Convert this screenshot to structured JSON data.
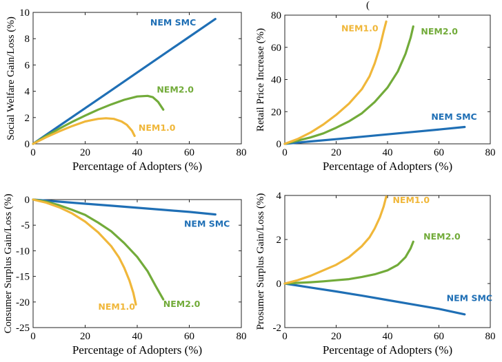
{
  "colors": {
    "nem_smc": "#1f6fb5",
    "nem2": "#72ab3a",
    "nem1": "#f0b73a"
  },
  "chart_data": [
    {
      "id": "social-welfare",
      "type": "line",
      "ylabel": "Social Welfare Gain/Loss (%)",
      "xlabel": "Percentage of Adopters (%)",
      "xlim": [
        0,
        80
      ],
      "ylim": [
        0,
        10
      ],
      "xticks": [
        "0",
        "20",
        "40",
        "60",
        "80"
      ],
      "yticks": [
        "0",
        "2",
        "4",
        "6",
        "8",
        "10"
      ],
      "series": [
        {
          "name": "NEM SMC",
          "color": "#1f6fb5",
          "label_at": [
            45,
            9.0
          ],
          "points": [
            [
              0,
              0
            ],
            [
              10,
              1.36
            ],
            [
              20,
              2.71
            ],
            [
              30,
              4.07
            ],
            [
              40,
              5.43
            ],
            [
              50,
              6.79
            ],
            [
              60,
              8.14
            ],
            [
              70,
              9.5
            ]
          ]
        },
        {
          "name": "NEM2.0",
          "color": "#72ab3a",
          "label_at": [
            47.5,
            3.9
          ],
          "points": [
            [
              0,
              0
            ],
            [
              5,
              0.6
            ],
            [
              10,
              1.15
            ],
            [
              15,
              1.67
            ],
            [
              20,
              2.15
            ],
            [
              25,
              2.6
            ],
            [
              30,
              3.0
            ],
            [
              35,
              3.35
            ],
            [
              40,
              3.6
            ],
            [
              44,
              3.65
            ],
            [
              46,
              3.55
            ],
            [
              48,
              3.2
            ],
            [
              50,
              2.6
            ]
          ]
        },
        {
          "name": "NEM1.0",
          "color": "#f0b73a",
          "label_at": [
            40.5,
            1.0
          ],
          "points": [
            [
              0,
              0
            ],
            [
              5,
              0.5
            ],
            [
              10,
              0.95
            ],
            [
              15,
              1.35
            ],
            [
              20,
              1.7
            ],
            [
              25,
              1.9
            ],
            [
              28,
              1.95
            ],
            [
              31,
              1.9
            ],
            [
              34,
              1.7
            ],
            [
              36,
              1.45
            ],
            [
              38,
              1.0
            ],
            [
              39,
              0.6
            ]
          ]
        }
      ]
    },
    {
      "id": "retail-price",
      "type": "line",
      "ylabel": "Retail Price Increase (%)",
      "xlabel": "Percentage of Adopters (%)",
      "xlim": [
        0,
        80
      ],
      "ylim": [
        0,
        80
      ],
      "xticks": [
        "0",
        "20",
        "40",
        "60",
        "80"
      ],
      "yticks": [
        "0",
        "20",
        "40",
        "60",
        "80"
      ],
      "annotation": "(",
      "series": [
        {
          "name": "NEM SMC",
          "color": "#1f6fb5",
          "label_at": [
            57,
            15
          ],
          "points": [
            [
              0,
              0
            ],
            [
              10,
              1.5
            ],
            [
              20,
              2.9
            ],
            [
              30,
              4.4
            ],
            [
              40,
              5.9
            ],
            [
              50,
              7.4
            ],
            [
              60,
              8.9
            ],
            [
              70,
              10.5
            ]
          ]
        },
        {
          "name": "NEM2.0",
          "color": "#72ab3a",
          "label_at": [
            53,
            68
          ],
          "points": [
            [
              0,
              0
            ],
            [
              5,
              2
            ],
            [
              10,
              4
            ],
            [
              15,
              6.5
            ],
            [
              20,
              10
            ],
            [
              25,
              14
            ],
            [
              30,
              19
            ],
            [
              35,
              26
            ],
            [
              40,
              35
            ],
            [
              44,
              45
            ],
            [
              47,
              56
            ],
            [
              49,
              66
            ],
            [
              50,
              73
            ]
          ]
        },
        {
          "name": "NEM1.0",
          "color": "#f0b73a",
          "label_at": [
            22,
            70
          ],
          "points": [
            [
              0,
              0
            ],
            [
              5,
              3
            ],
            [
              10,
              7
            ],
            [
              15,
              12
            ],
            [
              20,
              18
            ],
            [
              25,
              25
            ],
            [
              30,
              34
            ],
            [
              33,
              42
            ],
            [
              35,
              50
            ],
            [
              37,
              60
            ],
            [
              38.5,
              70
            ],
            [
              39.5,
              76
            ]
          ]
        }
      ]
    },
    {
      "id": "consumer-surplus",
      "type": "line",
      "ylabel": "Consumer Surplus Gain/Loss (%)",
      "xlabel": "Percentage of Adopters (%)",
      "xlim": [
        0,
        80
      ],
      "ylim": [
        -25,
        0
      ],
      "xticks": [
        "0",
        "20",
        "40",
        "60",
        "80"
      ],
      "yticks": [
        "0",
        "-5",
        "-10",
        "-15",
        "-20",
        "-25"
      ],
      "series": [
        {
          "name": "NEM SMC",
          "color": "#1f6fb5",
          "label_at": [
            58,
            -5.3
          ],
          "points": [
            [
              0,
              0
            ],
            [
              10,
              -0.4
            ],
            [
              20,
              -0.8
            ],
            [
              30,
              -1.2
            ],
            [
              40,
              -1.6
            ],
            [
              50,
              -2.0
            ],
            [
              60,
              -2.4
            ],
            [
              70,
              -2.9
            ]
          ]
        },
        {
          "name": "NEM2.0",
          "color": "#72ab3a",
          "label_at": [
            50,
            -21.0
          ],
          "points": [
            [
              0,
              0
            ],
            [
              5,
              -0.4
            ],
            [
              10,
              -1.1
            ],
            [
              15,
              -2.0
            ],
            [
              20,
              -3.0
            ],
            [
              25,
              -4.5
            ],
            [
              30,
              -6.2
            ],
            [
              35,
              -8.5
            ],
            [
              40,
              -11.2
            ],
            [
              44,
              -14.0
            ],
            [
              47,
              -16.8
            ],
            [
              50,
              -19.5
            ]
          ]
        },
        {
          "name": "NEM1.0",
          "color": "#f0b73a",
          "label_at": [
            25,
            -21.5
          ],
          "points": [
            [
              0,
              0
            ],
            [
              5,
              -0.6
            ],
            [
              10,
              -1.5
            ],
            [
              15,
              -2.7
            ],
            [
              20,
              -4.3
            ],
            [
              25,
              -6.4
            ],
            [
              30,
              -9.1
            ],
            [
              33,
              -11.3
            ],
            [
              35,
              -13.3
            ],
            [
              37,
              -15.8
            ],
            [
              38.5,
              -18.2
            ],
            [
              39.5,
              -20.5
            ]
          ]
        }
      ]
    },
    {
      "id": "prosumer-surplus",
      "type": "line",
      "ylabel": "Prosumer Surplus Gain/Loss (%)",
      "xlabel": "Percentage of Adopters (%)",
      "xlim": [
        0,
        80
      ],
      "ylim": [
        -2,
        4
      ],
      "xticks": [
        "0",
        "20",
        "40",
        "60",
        "80"
      ],
      "yticks": [
        "-2",
        "0",
        "2",
        "4"
      ],
      "series": [
        {
          "name": "NEM SMC",
          "color": "#1f6fb5",
          "label_at": [
            63,
            -0.8
          ],
          "points": [
            [
              0,
              0
            ],
            [
              10,
              -0.18
            ],
            [
              20,
              -0.36
            ],
            [
              30,
              -0.55
            ],
            [
              40,
              -0.75
            ],
            [
              50,
              -0.95
            ],
            [
              60,
              -1.15
            ],
            [
              70,
              -1.4
            ]
          ]
        },
        {
          "name": "NEM2.0",
          "color": "#72ab3a",
          "label_at": [
            54,
            2.0
          ],
          "points": [
            [
              0,
              0
            ],
            [
              5,
              0.03
            ],
            [
              10,
              0.06
            ],
            [
              15,
              0.1
            ],
            [
              20,
              0.15
            ],
            [
              25,
              0.2
            ],
            [
              30,
              0.3
            ],
            [
              35,
              0.42
            ],
            [
              40,
              0.6
            ],
            [
              44,
              0.85
            ],
            [
              47,
              1.2
            ],
            [
              49,
              1.6
            ],
            [
              50,
              1.9
            ]
          ]
        },
        {
          "name": "NEM1.0",
          "color": "#f0b73a",
          "label_at": [
            42,
            3.65
          ],
          "points": [
            [
              0,
              0
            ],
            [
              5,
              0.15
            ],
            [
              10,
              0.35
            ],
            [
              15,
              0.6
            ],
            [
              20,
              0.85
            ],
            [
              25,
              1.2
            ],
            [
              30,
              1.7
            ],
            [
              33,
              2.1
            ],
            [
              35,
              2.5
            ],
            [
              37,
              3.0
            ],
            [
              38.5,
              3.5
            ],
            [
              39.5,
              3.95
            ]
          ]
        }
      ]
    }
  ]
}
